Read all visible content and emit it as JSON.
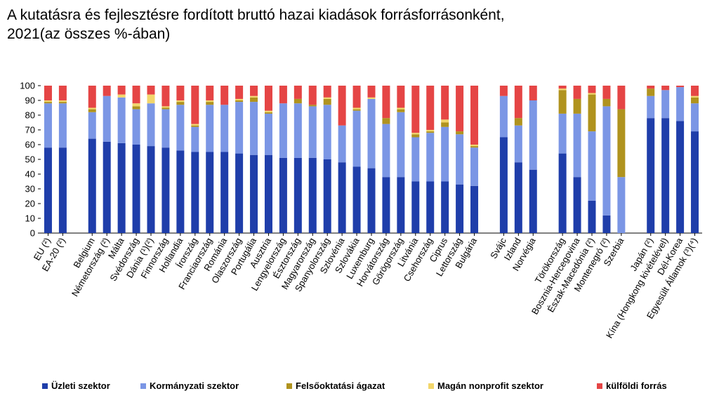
{
  "title": "A kutatásra és fejlesztésre fordított bruttó hazai kiadások forrásforrásonként,\n2021(az összes %-ában)",
  "colors": {
    "business": "#1F3EAA",
    "government": "#7B96E5",
    "higher_education": "#B0931E",
    "private_nonprofit": "#F2D66B",
    "abroad": "#E54545"
  },
  "chart_data": {
    "type": "bar",
    "stacked": true,
    "ylim": [
      0,
      100
    ],
    "yticks": [
      0,
      10,
      20,
      30,
      40,
      50,
      60,
      70,
      80,
      90,
      100
    ],
    "grid": false,
    "legend_position": "bottom",
    "categories": [
      "EU (²)",
      "EA-20 (²)",
      "",
      "Belgium",
      "Németország (²)",
      "Málta",
      "Svédország",
      "Dánia (¹)(²)",
      "Finnország",
      "Hollandia",
      "Írország",
      "Franciaország",
      "Románia",
      "Olaszország",
      "Portugália",
      "Ausztria",
      "Lengyelország",
      "Észtország",
      "Magyarország",
      "Spanyolország",
      "Szlovénia",
      "Szlovákia",
      "Luxemburg",
      "Horvátország",
      "Görögország",
      "Litvánia",
      "Csehország",
      "Ciprus",
      "Lettország",
      "Bulgária",
      "",
      "Svájc",
      "Izland",
      "Norvégia",
      "",
      "Törökország",
      "Bosznia-Hercegovina",
      "Észak-Macedónia (²)",
      "Montenegró (²)",
      "Szerbia",
      "",
      "Japán (²)",
      "Kína (Hongkong kivételével)",
      "Dél-Korea",
      "Egyesült Államok (³)(⁴)"
    ],
    "series": [
      {
        "name": "Üzleti szektor",
        "color_key": "business",
        "values": [
          58,
          58,
          null,
          64,
          62,
          61,
          60,
          59,
          58,
          56,
          55,
          55,
          55,
          54,
          53,
          53,
          51,
          51,
          51,
          50,
          48,
          45,
          44,
          38,
          38,
          35,
          35,
          35,
          33,
          32,
          null,
          65,
          48,
          43,
          null,
          54,
          38,
          22,
          12,
          0,
          null,
          78,
          78,
          76,
          69
        ]
      },
      {
        "name": "Kormányzati szektor",
        "color_key": "government",
        "values": [
          30,
          30,
          null,
          18,
          31,
          31,
          24,
          29,
          26,
          31,
          17,
          32,
          32,
          35,
          36,
          28,
          37,
          37,
          35,
          37,
          25,
          38,
          47,
          36,
          44,
          30,
          33,
          37,
          34,
          26,
          null,
          28,
          25,
          47,
          null,
          27,
          43,
          47,
          74,
          38,
          null,
          15,
          19,
          23,
          19
        ]
      },
      {
        "name": "Felsőoktatási ágazat",
        "color_key": "higher_education",
        "values": [
          1,
          1,
          null,
          2,
          0,
          0,
          2,
          0,
          1,
          2,
          1,
          2,
          0,
          1,
          3,
          1,
          0,
          3,
          1,
          4,
          0,
          1,
          0,
          4,
          2,
          2,
          1,
          3,
          2,
          1,
          null,
          0,
          5,
          0,
          null,
          16,
          10,
          25,
          5,
          46,
          null,
          5,
          0,
          0,
          4
        ]
      },
      {
        "name": "Magán nonprofit szektor",
        "color_key": "private_nonprofit",
        "values": [
          1,
          1,
          null,
          1,
          0,
          2,
          2,
          6,
          1,
          1,
          1,
          1,
          0,
          1,
          1,
          1,
          0,
          0,
          0,
          1,
          0,
          1,
          1,
          0,
          1,
          1,
          1,
          2,
          0,
          1,
          null,
          0,
          0,
          0,
          null,
          1,
          0,
          1,
          0,
          0,
          null,
          0,
          0,
          0,
          1
        ]
      },
      {
        "name": "külföldi forrás",
        "color_key": "abroad",
        "values": [
          10,
          10,
          null,
          15,
          7,
          6,
          12,
          6,
          14,
          10,
          26,
          10,
          13,
          9,
          7,
          17,
          12,
          9,
          13,
          8,
          27,
          15,
          8,
          22,
          15,
          32,
          30,
          23,
          31,
          40,
          null,
          7,
          22,
          10,
          null,
          2,
          9,
          5,
          9,
          16,
          null,
          2,
          3,
          1,
          7
        ]
      }
    ]
  }
}
